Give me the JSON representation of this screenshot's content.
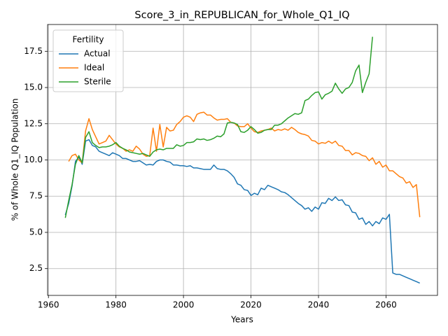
{
  "chart_data": {
    "type": "line",
    "title": "Score_3_in_REPUBLICAN_for_Whole_Q1_IQ",
    "xlabel": "Years",
    "ylabel": "% of Whole Q1_IQ Population",
    "legend_title": "Fertility",
    "legend": "upper left",
    "grid": true,
    "xlim": [
      1959.75,
      2075.25
    ],
    "ylim": [
      0.65,
      19.35
    ],
    "xticks": [
      1960,
      1980,
      2000,
      2020,
      2040,
      2060
    ],
    "yticks": [
      2.5,
      {
        "value": 5,
        "label": "5.0"
      },
      7.5,
      {
        "value": 10,
        "label": "10.0"
      },
      12.5,
      {
        "value": 15,
        "label": "15.0"
      },
      17.5
    ],
    "x": [
      1965,
      1966,
      1967,
      1968,
      1969,
      1970,
      1971,
      1972,
      1973,
      1974,
      1975,
      1976,
      1977,
      1978,
      1979,
      1980,
      1981,
      1982,
      1983,
      1984,
      1985,
      1986,
      1987,
      1988,
      1989,
      1990,
      1991,
      1992,
      1993,
      1994,
      1995,
      1996,
      1997,
      1998,
      1999,
      2000,
      2001,
      2002,
      2003,
      2004,
      2005,
      2006,
      2007,
      2008,
      2009,
      2010,
      2011,
      2012,
      2013,
      2014,
      2015,
      2016,
      2017,
      2018,
      2019,
      2020,
      2021,
      2022,
      2023,
      2024,
      2025,
      2026,
      2027,
      2028,
      2029,
      2030,
      2031,
      2032,
      2033,
      2034,
      2035,
      2036,
      2037,
      2038,
      2039,
      2040,
      2041,
      2042,
      2043,
      2044,
      2045,
      2046,
      2047,
      2048,
      2049,
      2050,
      2051,
      2052,
      2053,
      2054,
      2055,
      2056,
      2057,
      2058,
      2059,
      2060,
      2061,
      2062,
      2063,
      2064,
      2065,
      2066,
      2067,
      2068,
      2069,
      2070
    ],
    "series": [
      {
        "name": "Actual",
        "color": "#1f77b4",
        "values": [
          6.2,
          7.0,
          8.2,
          9.9,
          10.2,
          9.7,
          11.3,
          11.4,
          11.0,
          10.9,
          10.6,
          10.5,
          10.4,
          10.3,
          10.5,
          10.4,
          10.3,
          10.1,
          10.1,
          10.0,
          9.9,
          9.9,
          9.95,
          9.8,
          9.65,
          9.7,
          9.65,
          9.9,
          10.0,
          10.0,
          9.9,
          9.85,
          9.65,
          9.65,
          9.6,
          9.6,
          9.55,
          9.6,
          9.45,
          9.45,
          9.4,
          9.35,
          9.35,
          9.35,
          9.65,
          9.4,
          9.35,
          9.35,
          9.25,
          9.05,
          8.8,
          8.35,
          8.25,
          7.95,
          7.9,
          7.55,
          7.7,
          7.6,
          8.05,
          7.95,
          8.25,
          8.15,
          8.05,
          7.95,
          7.8,
          7.75,
          7.6,
          7.4,
          7.2,
          7.0,
          6.85,
          6.6,
          6.7,
          6.45,
          6.75,
          6.6,
          7.05,
          7.0,
          7.35,
          7.2,
          7.45,
          7.2,
          7.25,
          6.9,
          6.85,
          6.4,
          6.35,
          5.9,
          6.0,
          5.55,
          5.75,
          5.45,
          5.75,
          5.6,
          6.0,
          5.9,
          6.25,
          2.2,
          2.1,
          2.1,
          2.0,
          1.9,
          1.8,
          1.7,
          1.6,
          1.5
        ]
      },
      {
        "name": "Ideal",
        "color": "#ff7f0e",
        "values": [
          null,
          9.9,
          10.3,
          10.4,
          10.0,
          9.8,
          12.0,
          12.85,
          12.1,
          11.6,
          11.1,
          11.2,
          11.3,
          11.7,
          11.4,
          11.1,
          10.9,
          10.8,
          10.6,
          10.7,
          10.6,
          10.95,
          10.75,
          10.4,
          10.25,
          10.3,
          12.2,
          10.6,
          12.45,
          10.9,
          12.25,
          12.0,
          12.05,
          12.45,
          12.65,
          12.95,
          13.05,
          12.95,
          12.65,
          13.15,
          13.25,
          13.3,
          13.1,
          13.1,
          12.9,
          12.75,
          12.8,
          12.8,
          12.85,
          12.6,
          12.55,
          12.35,
          12.3,
          12.3,
          12.5,
          12.2,
          11.95,
          11.9,
          12.0,
          12.05,
          12.1,
          12.2,
          12.0,
          12.1,
          12.05,
          12.15,
          12.05,
          12.25,
          12.1,
          11.9,
          11.8,
          11.75,
          11.65,
          11.35,
          11.3,
          11.1,
          11.2,
          11.15,
          11.3,
          11.15,
          11.3,
          11.0,
          10.95,
          10.65,
          10.65,
          10.35,
          10.5,
          10.45,
          10.3,
          10.25,
          9.95,
          10.15,
          9.7,
          9.9,
          9.5,
          9.65,
          9.25,
          9.25,
          9.05,
          8.85,
          8.75,
          8.4,
          8.5,
          8.1,
          8.3,
          6.05
        ]
      },
      {
        "name": "Sterile",
        "color": "#2ca02c",
        "values": [
          6.0,
          7.2,
          8.3,
          9.7,
          10.3,
          9.8,
          11.55,
          11.95,
          11.2,
          11.0,
          10.85,
          10.9,
          10.9,
          10.95,
          11.05,
          11.2,
          10.95,
          10.8,
          10.7,
          10.55,
          10.5,
          10.45,
          10.4,
          10.45,
          10.35,
          10.25,
          10.55,
          10.7,
          10.75,
          10.7,
          10.8,
          10.8,
          10.8,
          11.05,
          10.95,
          11.0,
          11.2,
          11.2,
          11.25,
          11.45,
          11.4,
          11.45,
          11.35,
          11.4,
          11.5,
          11.65,
          11.6,
          11.8,
          12.55,
          12.6,
          12.55,
          12.45,
          11.95,
          11.9,
          12.05,
          12.3,
          12.1,
          11.85,
          11.9,
          12.05,
          12.1,
          12.1,
          12.4,
          12.4,
          12.5,
          12.7,
          12.9,
          13.05,
          13.2,
          13.15,
          13.25,
          14.1,
          14.2,
          14.45,
          14.65,
          14.7,
          14.2,
          14.5,
          14.6,
          14.75,
          15.3,
          14.9,
          14.6,
          14.9,
          15.0,
          15.35,
          16.15,
          16.55,
          14.65,
          15.35,
          15.95,
          18.5,
          null,
          null,
          null,
          null,
          null,
          null,
          null,
          null,
          null,
          null,
          null,
          null,
          null,
          null
        ]
      }
    ]
  }
}
